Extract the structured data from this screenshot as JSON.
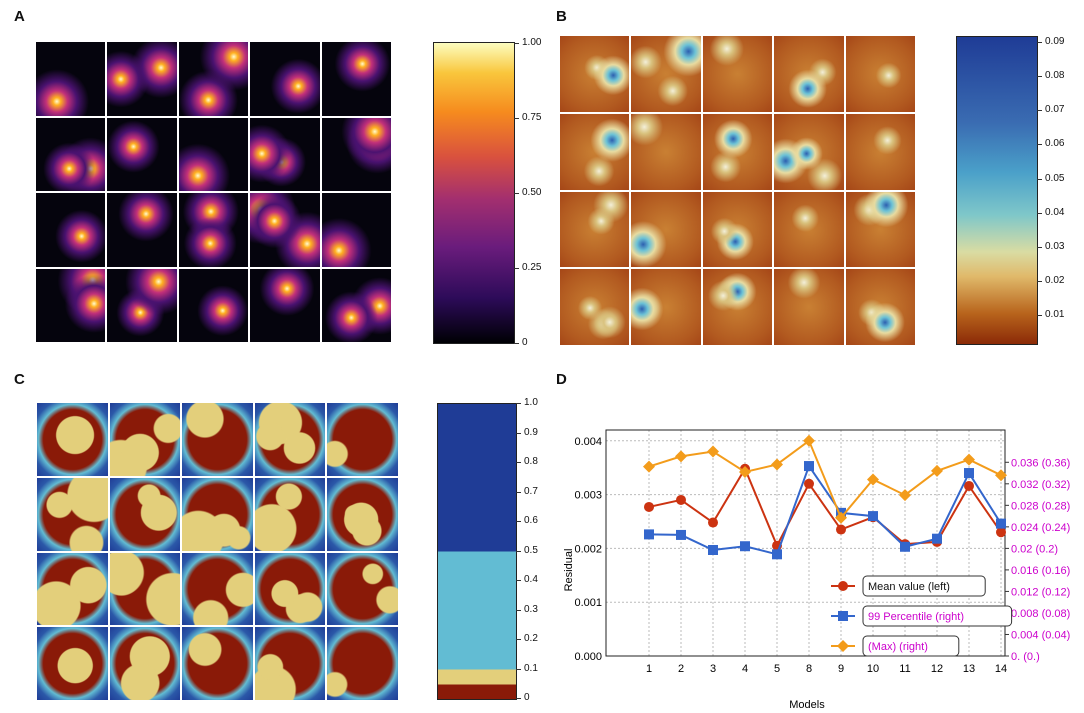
{
  "panels": {
    "a": {
      "label": "A",
      "ticks": [
        "1.00",
        "0.75",
        "0.50",
        "0.25",
        "0"
      ]
    },
    "b": {
      "label": "B",
      "ticks": [
        "0.09",
        "0.08",
        "0.07",
        "0.06",
        "0.05",
        "0.04",
        "0.03",
        "0.02",
        "0.01"
      ]
    },
    "c": {
      "label": "C",
      "ticks": [
        "1.0",
        "0.9",
        "0.8",
        "0.7",
        "0.6",
        "0.5",
        "0.4",
        "0.3",
        "0.2",
        "0.1",
        "0"
      ]
    },
    "d": {
      "label": "D"
    }
  },
  "colors": {
    "mean": "#cc3311",
    "p99": "#3366cc",
    "max": "#f39c1b",
    "right_axis": "#cc00cc",
    "c_dark_blue": "#1f3c96",
    "c_light_blue": "#62bcd3",
    "c_tan": "#e3cf7b",
    "c_dark_red": "#8a1a08"
  },
  "chart_data": {
    "type": "line",
    "title": "",
    "xlabel": "Models",
    "ylabel": "Residual",
    "categories": [
      "1",
      "2",
      "3",
      "4",
      "5",
      "8",
      "9",
      "10",
      "11",
      "12",
      "13",
      "14"
    ],
    "ylim": [
      0.0,
      0.0042
    ],
    "y_ticks": [
      "0.000",
      "0.001",
      "0.002",
      "0.003",
      "0.004"
    ],
    "y2lim": [
      0.0,
      0.042
    ],
    "y2_ticks": [
      "0.  (0.)",
      "0.004  (0.04)",
      "0.008  (0.08)",
      "0.012  (0.12)",
      "0.016  (0.16)",
      "0.02  (0.2)",
      "0.024  (0.24)",
      "0.028  (0.28)",
      "0.032  (0.32)",
      "0.036  (0.36)"
    ],
    "grid": true,
    "legend_position": "bottom-right",
    "series": [
      {
        "name": "Mean value (left)",
        "axis": "left",
        "marker": "circle",
        "values": [
          0.00277,
          0.0029,
          0.00248,
          0.00348,
          0.00205,
          0.0032,
          0.00235,
          0.00258,
          0.00208,
          0.00212,
          0.00316,
          0.0023
        ]
      },
      {
        "name": "99 Percentile (right)",
        "axis": "right",
        "marker": "square",
        "values": [
          0.0226,
          0.0225,
          0.0197,
          0.0204,
          0.0189,
          0.0353,
          0.0266,
          0.026,
          0.0203,
          0.0218,
          0.034,
          0.0246
        ]
      },
      {
        "name": "(Max) (right)",
        "axis": "right",
        "marker": "diamond",
        "values": [
          0.0352,
          0.0371,
          0.038,
          0.0342,
          0.0356,
          0.04,
          0.0257,
          0.0328,
          0.0299,
          0.0344,
          0.0365,
          0.0336
        ]
      }
    ]
  }
}
